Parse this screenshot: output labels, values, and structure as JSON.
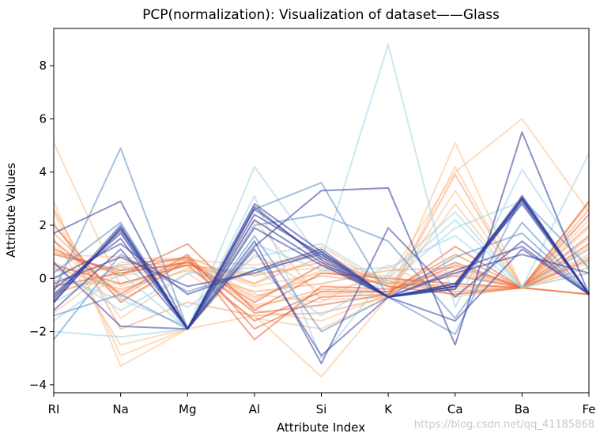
{
  "chart_data": {
    "type": "line",
    "title": "PCP(normalization): Visualization of dataset——Glass",
    "xlabel": "Attribute Index",
    "ylabel": "Attribute Values",
    "categories": [
      "RI",
      "Na",
      "Mg",
      "Al",
      "Si",
      "K",
      "Ca",
      "Ba",
      "Fe"
    ],
    "ylim": [
      -4.3,
      9.4
    ],
    "yticks": [
      -4,
      -2,
      0,
      2,
      4,
      6,
      8
    ],
    "grid": false,
    "legend": "none",
    "colors": {
      "orange_light": "#fdbf8c",
      "orange_mid": "#f4a06a",
      "red_orange": "#e8623b",
      "light_blue": "#9fd4e8",
      "steel_blue": "#5c8cc4",
      "navy": "#2b3799",
      "indigo": "#3a3fa0"
    },
    "series": [
      {
        "color": "#fdbf8c",
        "values": [
          5.1,
          -0.3,
          0.6,
          -1.2,
          -1.6,
          -0.6,
          2.8,
          -0.35,
          2.9
        ]
      },
      {
        "color": "#fdbf8c",
        "values": [
          2.9,
          -3.3,
          -1.9,
          -1.4,
          -3.7,
          -0.7,
          5.1,
          -0.35,
          0.6
        ]
      },
      {
        "color": "#fdbf8c",
        "values": [
          1.5,
          -2.5,
          -1.9,
          2.2,
          -0.8,
          -0.7,
          4.2,
          -0.35,
          1.2
        ]
      },
      {
        "color": "#fdbf8c",
        "values": [
          2.5,
          -2.9,
          -1.9,
          0.9,
          -0.5,
          0.0,
          4.0,
          6.0,
          2.5
        ]
      },
      {
        "color": "#fdbf8c",
        "values": [
          -0.5,
          0.1,
          0.5,
          -0.2,
          1.2,
          -0.3,
          -0.2,
          -0.35,
          2.8
        ]
      },
      {
        "color": "#fdbf8c",
        "values": [
          0.6,
          -0.5,
          0.6,
          -0.8,
          0.3,
          -0.2,
          0.3,
          -0.35,
          1.9
        ]
      },
      {
        "color": "#fdbf8c",
        "values": [
          1.2,
          -0.8,
          0.4,
          -1.0,
          -0.6,
          -0.5,
          0.9,
          -0.35,
          0.2
        ]
      },
      {
        "color": "#fdbf8c",
        "values": [
          -1.3,
          0.6,
          0.7,
          0.5,
          0.9,
          -0.1,
          -0.6,
          -0.35,
          -0.6
        ]
      },
      {
        "color": "#fdbf8c",
        "values": [
          0.3,
          0.4,
          0.6,
          -0.3,
          0.2,
          0.1,
          -0.5,
          -0.35,
          0.9
        ]
      },
      {
        "color": "#fdbf8c",
        "values": [
          2.1,
          -1.5,
          0.2,
          -1.5,
          -1.9,
          -0.7,
          3.3,
          -0.35,
          2.2
        ]
      },
      {
        "color": "#fdbf8c",
        "values": [
          -0.2,
          -0.2,
          0.5,
          0.2,
          0.4,
          -0.3,
          -0.4,
          -0.35,
          1.5
        ]
      },
      {
        "color": "#fdbf8c",
        "values": [
          0.9,
          0.8,
          0.7,
          -0.6,
          -0.9,
          0.5,
          -0.7,
          -0.35,
          -0.6
        ]
      },
      {
        "color": "#f4a06a",
        "values": [
          1.7,
          -0.7,
          0.8,
          -1.1,
          -0.4,
          -0.5,
          0.9,
          -0.35,
          2.6
        ]
      },
      {
        "color": "#f4a06a",
        "values": [
          1.0,
          0.2,
          0.6,
          -0.7,
          0.1,
          -0.2,
          0.2,
          -0.35,
          1.1
        ]
      },
      {
        "color": "#f4a06a",
        "values": [
          -0.6,
          0.3,
          0.5,
          0.1,
          0.6,
          -0.1,
          -0.5,
          -0.35,
          -0.6
        ]
      },
      {
        "color": "#f4a06a",
        "values": [
          2.6,
          -1.9,
          -0.9,
          -1.4,
          -1.3,
          -0.7,
          3.9,
          -0.35,
          0.8
        ]
      },
      {
        "color": "#f4a06a",
        "values": [
          0.4,
          -0.4,
          0.3,
          -0.5,
          -0.2,
          0.3,
          0.4,
          -0.35,
          2.0
        ]
      },
      {
        "color": "#f4a06a",
        "values": [
          -0.1,
          0.5,
          0.8,
          -0.2,
          0.8,
          -0.2,
          -0.3,
          -0.35,
          0.4
        ]
      },
      {
        "color": "#e8623b",
        "values": [
          1.4,
          -0.6,
          0.9,
          -1.9,
          -0.7,
          -0.6,
          0.5,
          -0.35,
          2.4
        ]
      },
      {
        "color": "#e8623b",
        "values": [
          0.9,
          0.3,
          0.8,
          -2.3,
          -0.3,
          -0.4,
          0.1,
          -0.35,
          0.7
        ]
      },
      {
        "color": "#e8623b",
        "values": [
          1.1,
          0.1,
          1.3,
          -1.2,
          0.2,
          0.0,
          -0.2,
          -0.35,
          1.6
        ]
      },
      {
        "color": "#e8623b",
        "values": [
          -0.3,
          0.2,
          0.6,
          -0.9,
          0.5,
          -0.3,
          -0.6,
          -0.35,
          2.9
        ]
      },
      {
        "color": "#e8623b",
        "values": [
          0.5,
          -0.2,
          0.5,
          -1.6,
          -0.5,
          -0.5,
          0.6,
          -0.35,
          -0.6
        ]
      },
      {
        "color": "#e8623b",
        "values": [
          2.0,
          -0.9,
          0.7,
          -1.3,
          -1.0,
          -0.6,
          1.2,
          -0.35,
          1.3
        ]
      },
      {
        "color": "#9fd4e8",
        "values": [
          -1.6,
          0.2,
          -1.9,
          4.2,
          0.7,
          8.8,
          -1.1,
          4.1,
          0.3
        ]
      },
      {
        "color": "#9fd4e8",
        "values": [
          -2.0,
          -2.2,
          -1.9,
          3.1,
          -3.0,
          0.2,
          2.5,
          -0.35,
          4.7
        ]
      },
      {
        "color": "#9fd4e8",
        "values": [
          0.1,
          -0.8,
          -1.8,
          1.3,
          0.3,
          0.4,
          1.6,
          -0.35,
          1.1
        ]
      },
      {
        "color": "#9fd4e8",
        "values": [
          -0.9,
          0.5,
          -1.1,
          0.8,
          1.3,
          -0.2,
          1.9,
          2.9,
          -0.6
        ]
      },
      {
        "color": "#9fd4e8",
        "values": [
          0.4,
          -1.2,
          0.2,
          0.4,
          -1.4,
          0.0,
          2.2,
          -0.35,
          0.2
        ]
      },
      {
        "color": "#5c8cc4",
        "values": [
          -0.5,
          4.9,
          -1.9,
          2.6,
          3.6,
          -0.7,
          -2.1,
          3.1,
          -0.6
        ]
      },
      {
        "color": "#5c8cc4",
        "values": [
          -1.4,
          -0.6,
          -1.9,
          2.0,
          2.4,
          1.4,
          -1.5,
          2.1,
          -0.6
        ]
      },
      {
        "color": "#5c8cc4",
        "values": [
          0.2,
          2.1,
          -1.9,
          1.6,
          -2.0,
          -0.7,
          0.8,
          1.7,
          -0.6
        ]
      },
      {
        "color": "#5c8cc4",
        "values": [
          -2.3,
          0.9,
          -0.5,
          0.3,
          0.9,
          -0.7,
          -0.4,
          3.0,
          0.4
        ]
      },
      {
        "color": "#2b3799",
        "values": [
          1.7,
          2.9,
          -1.9,
          1.2,
          3.3,
          3.4,
          -2.5,
          5.5,
          -0.6
        ]
      },
      {
        "color": "#2b3799",
        "values": [
          -0.9,
          1.9,
          -1.9,
          2.8,
          1.0,
          -0.7,
          -0.3,
          3.0,
          -0.6
        ]
      },
      {
        "color": "#2b3799",
        "values": [
          -0.7,
          1.8,
          -1.9,
          2.6,
          0.8,
          -0.7,
          -0.2,
          3.0,
          -0.6
        ]
      },
      {
        "color": "#2b3799",
        "values": [
          -0.8,
          2.0,
          -1.9,
          2.4,
          0.9,
          -0.7,
          -0.3,
          3.1,
          -0.6
        ]
      },
      {
        "color": "#2b3799",
        "values": [
          -0.6,
          1.7,
          -1.9,
          2.2,
          0.6,
          -0.7,
          -0.4,
          2.9,
          -0.6
        ]
      },
      {
        "color": "#2b3799",
        "values": [
          -0.9,
          1.9,
          -1.9,
          2.7,
          0.7,
          -0.7,
          -0.3,
          3.0,
          -0.6
        ]
      },
      {
        "color": "#2b3799",
        "values": [
          -0.4,
          1.5,
          -1.9,
          1.9,
          0.5,
          -0.7,
          -0.2,
          2.8,
          -0.6
        ]
      },
      {
        "color": "#3a3fa0",
        "values": [
          0.6,
          -1.8,
          -1.9,
          1.1,
          -2.9,
          -0.7,
          -1.6,
          1.1,
          -0.6
        ]
      },
      {
        "color": "#3a3fa0",
        "values": [
          -1.2,
          1.1,
          -1.9,
          1.4,
          -3.2,
          1.9,
          -0.7,
          1.4,
          -0.6
        ]
      },
      {
        "color": "#3a3fa0",
        "values": [
          0.0,
          1.3,
          -0.6,
          0.3,
          1.1,
          -0.7,
          0.2,
          0.9,
          0.2
        ]
      },
      {
        "color": "#3a3fa0",
        "values": [
          -0.2,
          0.8,
          -0.3,
          0.2,
          1.0,
          -0.7,
          0.3,
          1.2,
          -0.6
        ]
      }
    ]
  },
  "watermark": "https://blog.csdn.net/qq_41185868"
}
